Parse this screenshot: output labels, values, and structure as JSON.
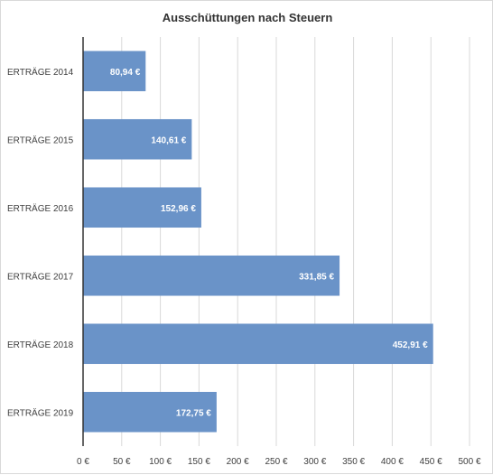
{
  "chart_data": {
    "type": "bar",
    "orientation": "horizontal",
    "title": "Ausschüttungen nach Steuern",
    "xlabel": "",
    "ylabel": "",
    "categories": [
      "ERTRÄGE 2014",
      "ERTRÄGE 2015",
      "ERTRÄGE 2016",
      "ERTRÄGE 2017",
      "ERTRÄGE 2018",
      "ERTRÄGE 2019"
    ],
    "values": [
      80.94,
      140.61,
      152.96,
      331.85,
      452.91,
      172.75
    ],
    "value_labels": [
      "80,94 €",
      "140,61 €",
      "152,96 €",
      "331,85 €",
      "452,91 €",
      "172,75 €"
    ],
    "x_ticks": [
      0,
      50,
      100,
      150,
      200,
      250,
      300,
      350,
      400,
      450,
      500
    ],
    "x_tick_labels": [
      "0 €",
      "50 €",
      "100 €",
      "150 €",
      "200 €",
      "250 €",
      "300 €",
      "350 €",
      "400 €",
      "450 €",
      "500 €"
    ],
    "xlim": [
      0,
      500
    ],
    "grid": true,
    "legend": "none",
    "bar_color": "#6a93c8"
  }
}
